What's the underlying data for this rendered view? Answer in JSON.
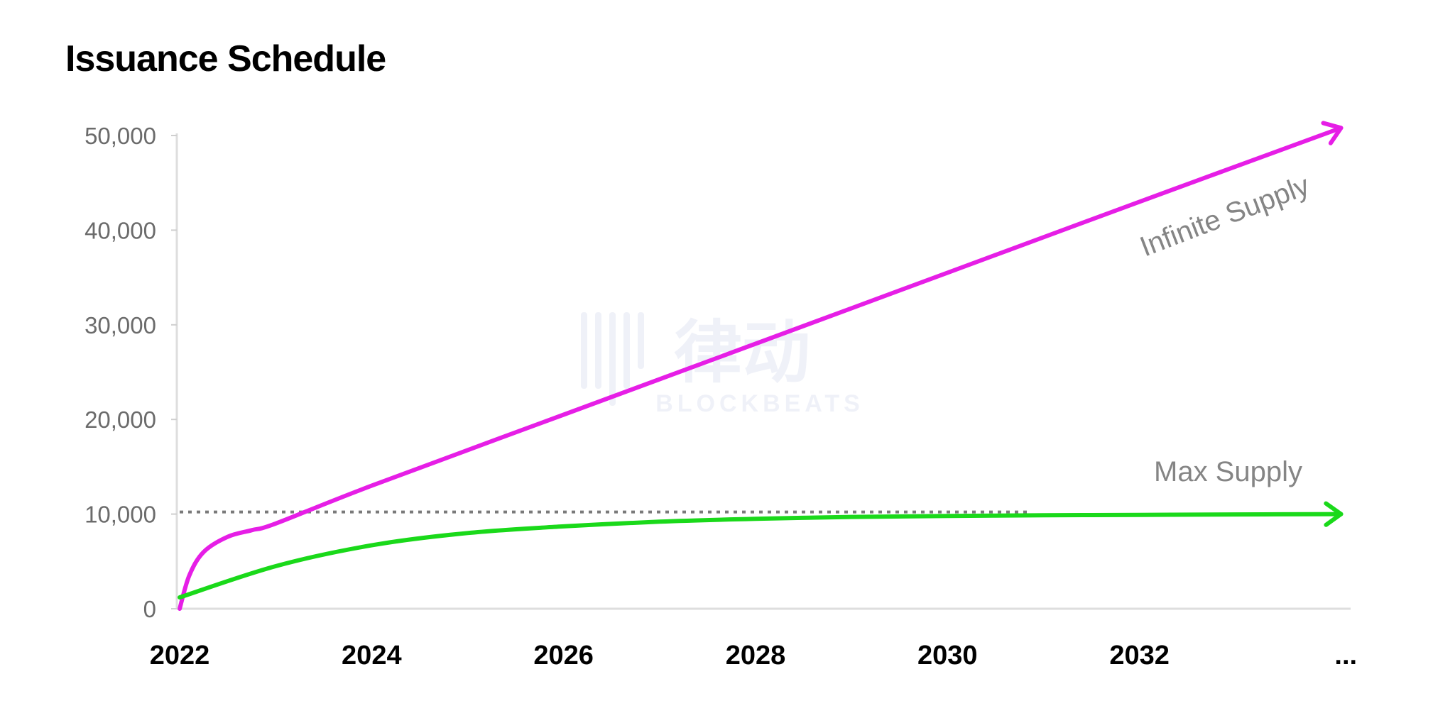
{
  "chart_data": {
    "type": "line",
    "title": "Issuance Schedule",
    "xlabel": "",
    "ylabel": "",
    "x_tick_labels": [
      "2022",
      "2024",
      "2026",
      "2028",
      "2030",
      "2032",
      "..."
    ],
    "y_tick_labels": [
      "0",
      "10,000",
      "20,000",
      "30,000",
      "40,000",
      "50,000"
    ],
    "ylim": [
      0,
      50000
    ],
    "xlim": [
      2022,
      2034.2
    ],
    "grid": false,
    "reference_line": {
      "value": 10000,
      "style": "dotted",
      "color": "#7a7a7a"
    },
    "series": [
      {
        "name": "Infinite Supply",
        "color": "#e61ee6",
        "arrow_end": true,
        "x": [
          2022,
          2022.1,
          2022.25,
          2022.5,
          2022.75,
          2023,
          2024,
          2026,
          2028,
          2030,
          2032,
          2034.1
        ],
        "values": [
          0,
          3500,
          6000,
          7600,
          8300,
          9000,
          13000,
          20500,
          28000,
          35500,
          43000,
          50800
        ]
      },
      {
        "name": "Max Supply",
        "color": "#1ad91a",
        "arrow_end": true,
        "x": [
          2022,
          2023,
          2024,
          2025,
          2026,
          2027,
          2028,
          2029,
          2030,
          2031,
          2032,
          2033,
          2034.1
        ],
        "values": [
          1200,
          4500,
          6700,
          8000,
          8700,
          9200,
          9500,
          9700,
          9800,
          9870,
          9920,
          9960,
          10000
        ]
      }
    ]
  },
  "watermark": {
    "text": "BLOCKBEATS",
    "brand": "律动"
  }
}
